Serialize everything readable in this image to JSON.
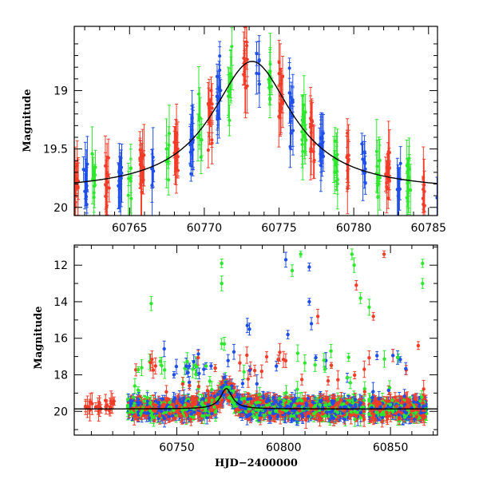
{
  "colors": {
    "red": "#f23c28",
    "green": "#2ee82e",
    "blue": "#1f4fe8",
    "model": "#000000"
  },
  "chart_data": [
    {
      "type": "scatter",
      "title": "",
      "xlabel": "",
      "ylabel": "Magnitude",
      "xlim": [
        60761.3,
        60785.6
      ],
      "ylim": [
        20.07,
        18.45
      ],
      "y_inverted": true,
      "x_ticks": [
        "60765",
        "60770",
        "60775",
        "60780",
        "60785"
      ],
      "y_ticks": [
        "19",
        "19.5",
        "20"
      ],
      "grid": false,
      "legend": "none",
      "series": [
        {
          "color": "red",
          "description": "photometry band 1"
        },
        {
          "color": "green",
          "description": "photometry band 2"
        },
        {
          "color": "blue",
          "description": "photometry band 3"
        }
      ],
      "model_curve": {
        "baseline_mag": 19.87,
        "peak_mag": 18.75,
        "peak_x": 60773.2,
        "width_days": 3.3
      }
    },
    {
      "type": "scatter",
      "title": "",
      "xlabel": "HJD−2400000",
      "ylabel": "Magnitude",
      "xlim": [
        60702,
        60872
      ],
      "ylim": [
        21.3,
        10.9
      ],
      "y_inverted": true,
      "x_ticks": [
        "60750",
        "60800",
        "60850"
      ],
      "y_ticks": [
        "12",
        "14",
        "16",
        "18",
        "20"
      ],
      "grid": false,
      "legend": "none",
      "series": [
        {
          "color": "red",
          "description": "photometry band 1"
        },
        {
          "color": "green",
          "description": "photometry band 2"
        },
        {
          "color": "blue",
          "description": "photometry band 3"
        }
      ],
      "model_curve": {
        "baseline_mag": 19.87,
        "peak_mag": 18.75,
        "peak_x": 60773.2,
        "width_days": 3.3
      },
      "outliers": [
        {
          "x": 60738,
          "y": 14.1,
          "color": "green"
        },
        {
          "x": 60771,
          "y": 11.9,
          "color": "green"
        },
        {
          "x": 60771,
          "y": 13.0,
          "color": "green"
        },
        {
          "x": 60771,
          "y": 16.3,
          "color": "green"
        },
        {
          "x": 60783,
          "y": 15.3,
          "color": "blue"
        },
        {
          "x": 60784,
          "y": 15.5,
          "color": "blue"
        },
        {
          "x": 60801,
          "y": 11.7,
          "color": "blue"
        },
        {
          "x": 60802,
          "y": 15.8,
          "color": "blue"
        },
        {
          "x": 60804,
          "y": 12.3,
          "color": "green"
        },
        {
          "x": 60808,
          "y": 11.4,
          "color": "green"
        },
        {
          "x": 60812,
          "y": 12.1,
          "color": "blue"
        },
        {
          "x": 60812,
          "y": 14.0,
          "color": "blue"
        },
        {
          "x": 60813,
          "y": 15.2,
          "color": "blue"
        },
        {
          "x": 60816,
          "y": 14.8,
          "color": "red"
        },
        {
          "x": 60832,
          "y": 11.4,
          "color": "green"
        },
        {
          "x": 60833,
          "y": 12.0,
          "color": "green"
        },
        {
          "x": 60834,
          "y": 13.1,
          "color": "red"
        },
        {
          "x": 60836,
          "y": 13.8,
          "color": "green"
        },
        {
          "x": 60840,
          "y": 14.3,
          "color": "green"
        },
        {
          "x": 60842,
          "y": 14.8,
          "color": "red"
        },
        {
          "x": 60847,
          "y": 11.4,
          "color": "red"
        },
        {
          "x": 60865,
          "y": 11.9,
          "color": "green"
        },
        {
          "x": 60865,
          "y": 13.0,
          "color": "green"
        },
        {
          "x": 60863,
          "y": 16.4,
          "color": "red"
        }
      ]
    }
  ]
}
